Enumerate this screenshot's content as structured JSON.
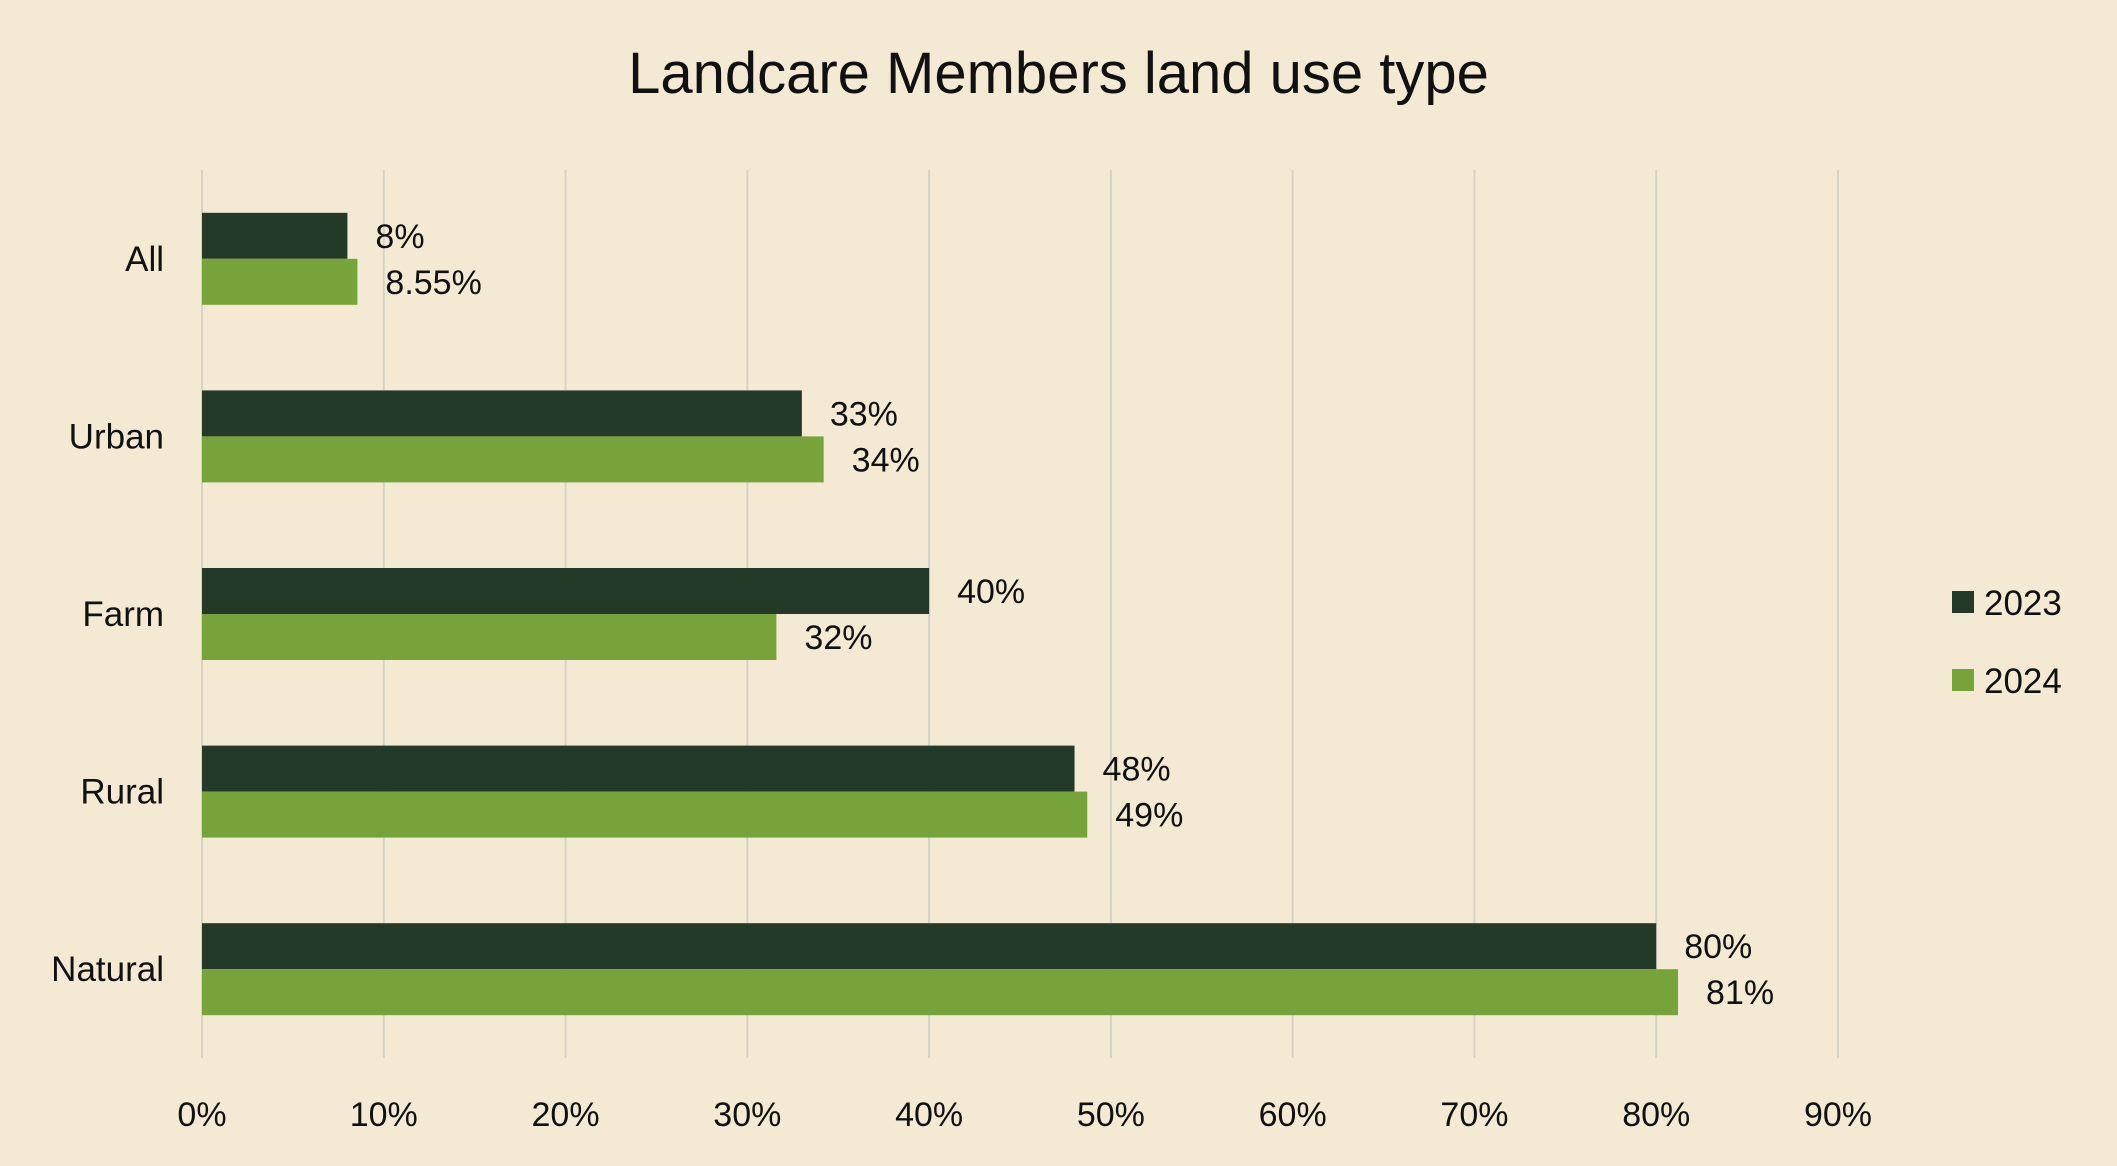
{
  "chart_data": {
    "type": "bar",
    "orientation": "horizontal",
    "title": "Landcare Members land use type",
    "categories": [
      "All",
      "Urban",
      "Farm",
      "Rural",
      "Natural"
    ],
    "series": [
      {
        "name": "2023",
        "color": "#243A29",
        "values": [
          8,
          33,
          40,
          48,
          80
        ],
        "labels": [
          "8%",
          "33%",
          "40%",
          "48%",
          "80%"
        ]
      },
      {
        "name": "2024",
        "color": "#76A43B",
        "values": [
          8.55,
          34.2,
          31.6,
          48.7,
          81.2
        ],
        "labels": [
          "8.55%",
          "34%",
          "32%",
          "49%",
          "81%"
        ]
      }
    ],
    "x_ticks": [
      "0%",
      "10%",
      "20%",
      "30%",
      "40%",
      "50%",
      "60%",
      "70%",
      "80%",
      "90%"
    ],
    "xlim": [
      0,
      90
    ],
    "xlabel": "",
    "ylabel": "",
    "grid": "vertical",
    "legend_position": "right",
    "colors": {
      "background": "#F4EAD3",
      "grid": "#D6D3C6",
      "text": "#111111"
    }
  }
}
